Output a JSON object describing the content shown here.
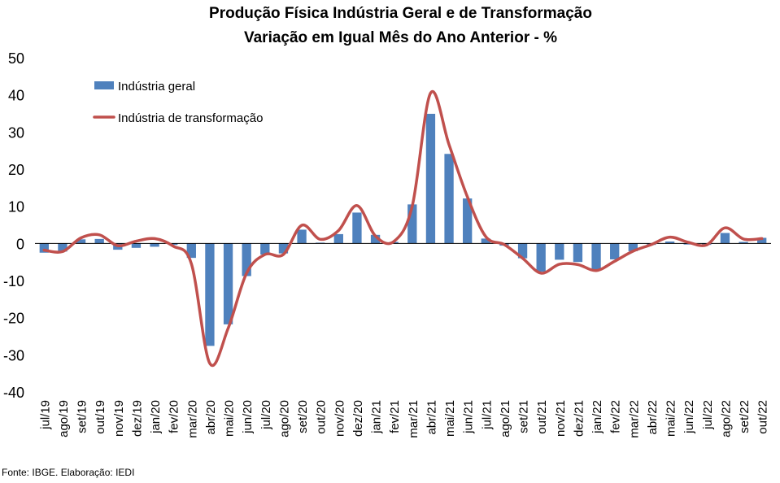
{
  "chart_data": {
    "type": "bar",
    "title": "Produção Física Indústria Geral e de Transformação",
    "subtitle": "Variação em Igual Mês do Ano Anterior - %",
    "ylim": [
      -40,
      50
    ],
    "yticks": [
      -40,
      -30,
      -20,
      -10,
      0,
      10,
      20,
      30,
      40,
      50
    ],
    "legend_position": "top-left",
    "grid": false,
    "categories": [
      "jul/19",
      "ago/19",
      "set/19",
      "out/19",
      "nov/19",
      "dez/19",
      "jan/20",
      "fev/20",
      "mar/20",
      "abr/20",
      "mai/20",
      "jun/20",
      "jul/20",
      "ago/20",
      "set/20",
      "out/20",
      "nov/20",
      "dez/20",
      "jan/21",
      "fev/21",
      "mar/21",
      "abr/21",
      "mai/21",
      "jun/21",
      "jul/21",
      "ago/21",
      "set/21",
      "out/21",
      "nov/21",
      "dez/21",
      "jan/22",
      "fev/22",
      "mar/22",
      "abr/22",
      "mai/22",
      "jun/22",
      "jul/22",
      "ago/22",
      "set/22",
      "out/22"
    ],
    "series": [
      {
        "name": "Indústria geral",
        "type": "bar",
        "color": "#4F81BD",
        "values": [
          -2.5,
          -2.2,
          1.1,
          1.2,
          -1.7,
          -1.2,
          -0.9,
          -0.4,
          -3.9,
          -27.6,
          -21.8,
          -8.8,
          -3.0,
          -2.7,
          3.7,
          0.2,
          2.5,
          8.3,
          2.3,
          0.4,
          10.5,
          34.9,
          24.1,
          12.1,
          1.3,
          -0.6,
          -4.0,
          -7.6,
          -4.4,
          -5.0,
          -7.2,
          -4.3,
          -2.1,
          -0.4,
          0.5,
          -0.3,
          -0.4,
          2.8,
          0.4,
          1.5
        ]
      },
      {
        "name": "Indústria de transformação",
        "type": "line",
        "color": "#C0504D",
        "values": [
          -1.8,
          -2.2,
          1.5,
          2.3,
          -0.6,
          0.6,
          1.3,
          -0.7,
          -5.5,
          -32.3,
          -22.8,
          -8.0,
          -3.0,
          -3.0,
          4.9,
          1.1,
          3.5,
          10.2,
          2.0,
          0.5,
          10.0,
          40.5,
          26.6,
          12.5,
          1.8,
          -0.3,
          -4.0,
          -8.0,
          -5.6,
          -5.7,
          -7.3,
          -4.8,
          -2.1,
          -0.3,
          1.7,
          0.3,
          -0.4,
          4.2,
          1.2,
          1.3
        ]
      }
    ]
  },
  "source_text": "Fonte: IBGE. Elaboração: IEDI"
}
